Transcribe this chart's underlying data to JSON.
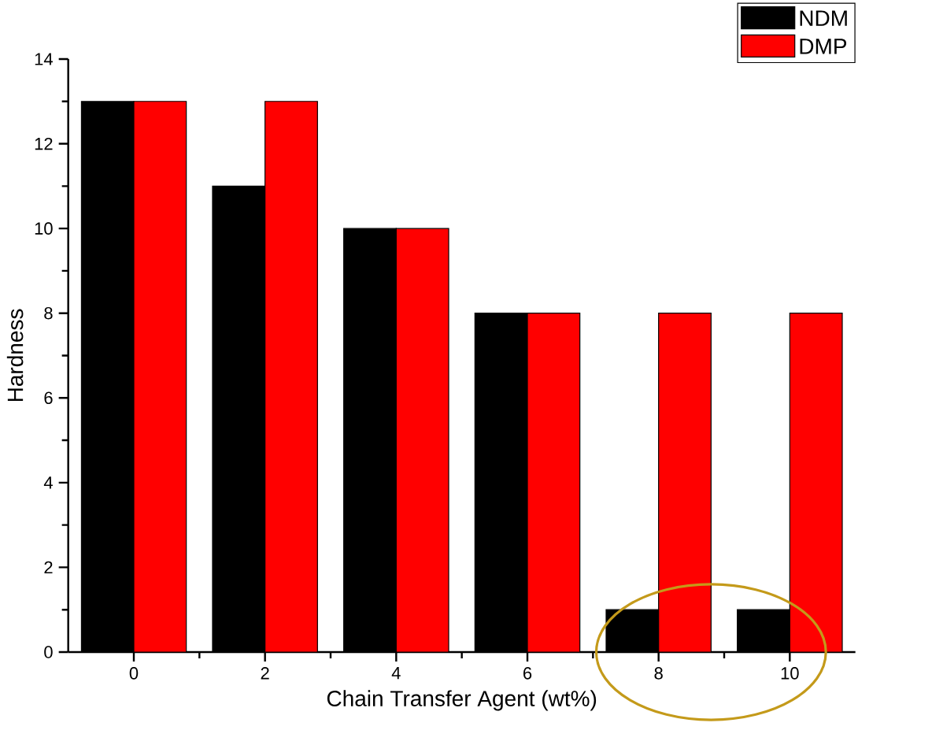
{
  "chart_data": {
    "type": "bar",
    "xlabel": "Chain Transfer Agent (wt%)",
    "ylabel": "Hardness",
    "x": [
      0,
      2,
      4,
      6,
      8,
      10
    ],
    "series": [
      {
        "name": "NDM",
        "color": "#000000",
        "values": [
          13,
          11,
          10,
          8,
          1,
          1
        ]
      },
      {
        "name": "DMP",
        "color": "#ff0000",
        "values": [
          13,
          13,
          10,
          8,
          8,
          8
        ]
      }
    ],
    "xlim": [
      -1,
      11
    ],
    "xticks": [
      0,
      2,
      4,
      6,
      8,
      10
    ],
    "ylim": [
      0,
      14
    ],
    "yticks": [
      0,
      2,
      4,
      6,
      8,
      10,
      12,
      14
    ],
    "legend": "top right",
    "grid": false
  }
}
